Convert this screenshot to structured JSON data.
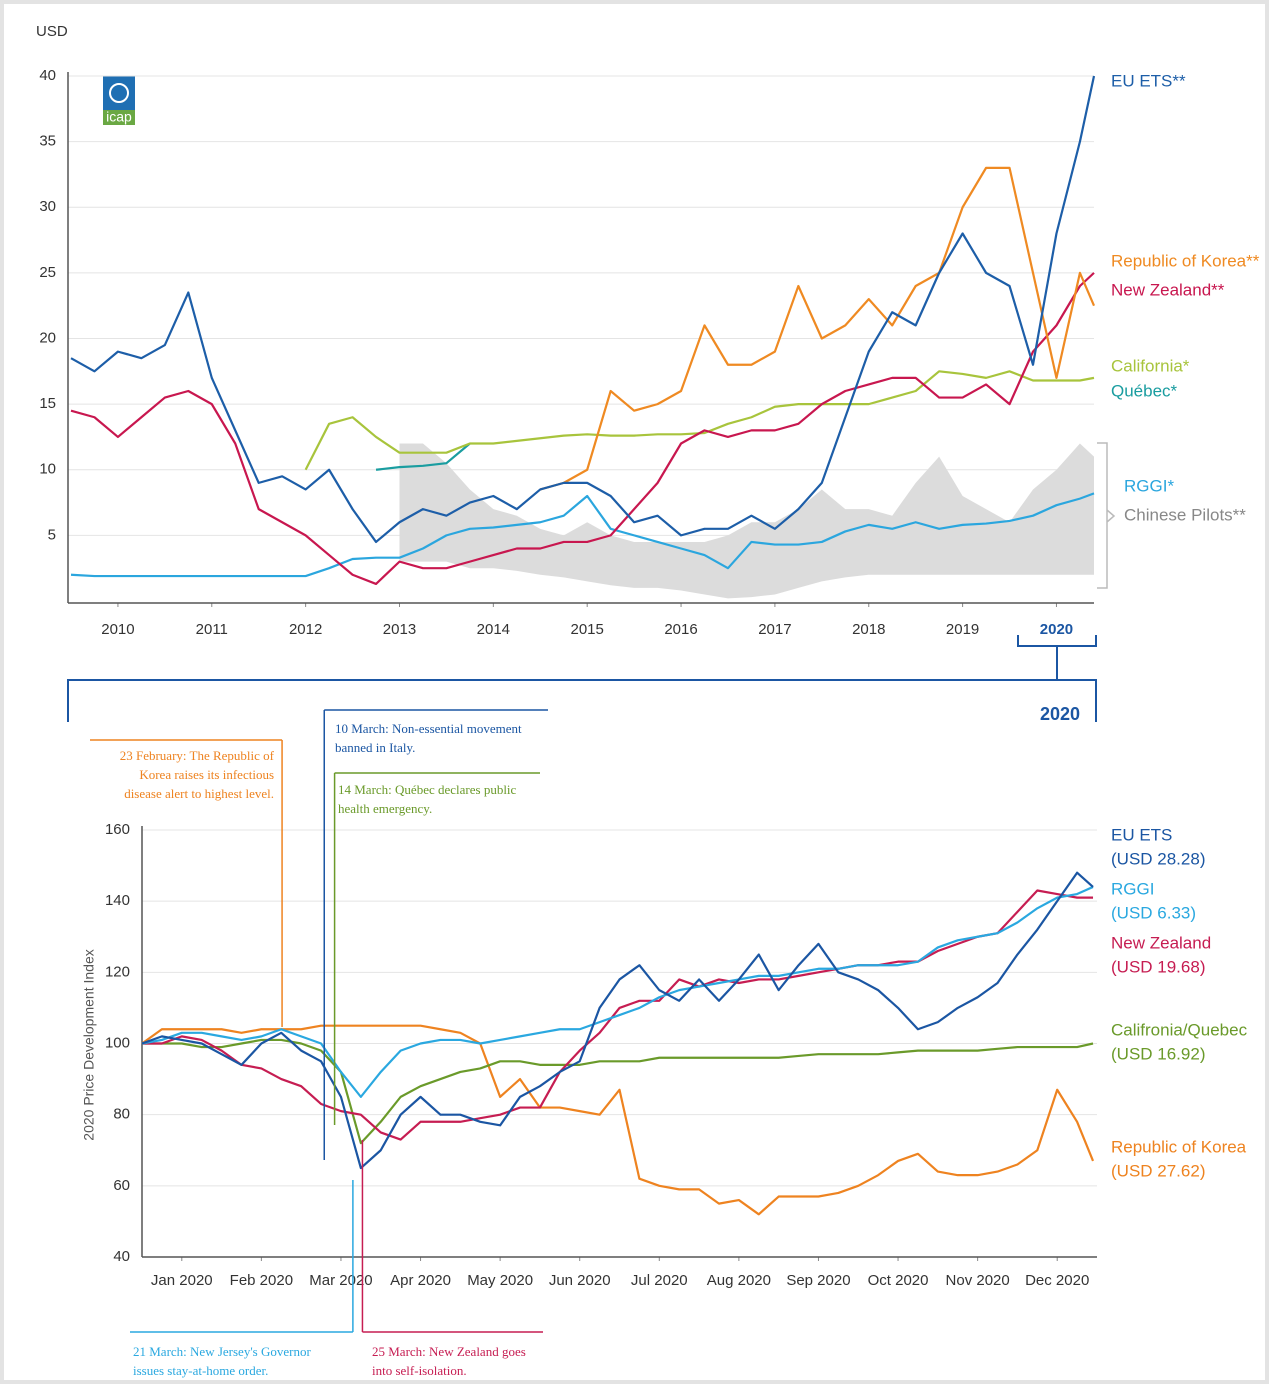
{
  "chart_data": [
    {
      "type": "line",
      "ylabel": "USD",
      "logo": "icap",
      "x": [
        2010,
        2010.25,
        2010.5,
        2010.75,
        2011,
        2011.25,
        2011.5,
        2011.75,
        2012,
        2012.25,
        2012.5,
        2012.75,
        2013,
        2013.25,
        2013.5,
        2013.75,
        2014,
        2014.25,
        2014.5,
        2014.75,
        2015,
        2015.25,
        2015.5,
        2015.75,
        2016,
        2016.25,
        2016.5,
        2016.75,
        2017,
        2017.25,
        2017.5,
        2017.75,
        2018,
        2018.25,
        2018.5,
        2018.75,
        2019,
        2019.25,
        2019.5,
        2019.75,
        2020,
        2020.25,
        2020.5,
        2020.75,
        2020.9
      ],
      "xlim": [
        2010,
        2020.9
      ],
      "xticks": [
        {
          "value": 2010.5,
          "label": "2010"
        },
        {
          "value": 2011.5,
          "label": "2011"
        },
        {
          "value": 2012.5,
          "label": "2012"
        },
        {
          "value": 2013.5,
          "label": "2013"
        },
        {
          "value": 2014.5,
          "label": "2014"
        },
        {
          "value": 2015.5,
          "label": "2015"
        },
        {
          "value": 2016.5,
          "label": "2016"
        },
        {
          "value": 2017.5,
          "label": "2017"
        },
        {
          "value": 2018.5,
          "label": "2018"
        },
        {
          "value": 2019.5,
          "label": "2019"
        },
        {
          "value": 2020.5,
          "label": "2020",
          "highlight": true
        }
      ],
      "ylim": [
        0,
        40
      ],
      "yticks": [
        5,
        10,
        15,
        20,
        25,
        30,
        35,
        40
      ],
      "grid": true,
      "series": [
        {
          "name": "EU ETS**",
          "color": "#1d5ea8",
          "values": [
            18.5,
            17.5,
            19,
            18.5,
            19.5,
            23.5,
            17,
            13,
            9,
            9.5,
            8.5,
            10,
            7,
            4.5,
            6,
            7,
            6.5,
            7.5,
            8,
            7,
            8.5,
            9,
            9,
            8,
            6,
            6.5,
            5,
            5.5,
            5.5,
            6.5,
            5.5,
            7,
            9,
            14,
            19,
            22,
            21,
            25,
            28,
            25,
            24,
            18,
            28,
            35,
            40
          ]
        },
        {
          "name": "Republic of Korea**",
          "color": "#ef8a22",
          "values": [
            null,
            null,
            null,
            null,
            null,
            null,
            null,
            null,
            null,
            null,
            null,
            null,
            null,
            null,
            null,
            null,
            null,
            null,
            null,
            null,
            8.5,
            9,
            10,
            16,
            14.5,
            15,
            16,
            21,
            18,
            18,
            19,
            24,
            20,
            21,
            23,
            21,
            24,
            25,
            30,
            33,
            33,
            25,
            17,
            25,
            22.5
          ]
        },
        {
          "name": "New Zealand**",
          "color": "#c8174f",
          "values": [
            14.5,
            14,
            12.5,
            14,
            15.5,
            16,
            15,
            12,
            7,
            6,
            5,
            3.5,
            2,
            1.3,
            3,
            2.5,
            2.5,
            3,
            3.5,
            4,
            4,
            4.5,
            4.5,
            5,
            7,
            9,
            12,
            13,
            12.5,
            13,
            13,
            13.5,
            15,
            16,
            16.5,
            17,
            17,
            15.5,
            15.5,
            16.5,
            15,
            19,
            21,
            24,
            25
          ]
        },
        {
          "name": "California*",
          "color": "#a8c43c",
          "values": [
            null,
            null,
            null,
            null,
            null,
            null,
            null,
            null,
            null,
            null,
            10,
            13.5,
            14,
            12.5,
            11.3,
            11.3,
            11.3,
            12,
            12,
            12.2,
            12.4,
            12.6,
            12.7,
            12.6,
            12.6,
            12.7,
            12.7,
            12.8,
            13.5,
            14,
            14.8,
            15,
            15,
            15,
            15,
            15.5,
            16,
            17.5,
            17.3,
            17,
            17.5,
            16.8,
            16.8,
            16.8,
            17
          ]
        },
        {
          "name": "Québec*",
          "color": "#1a9da0",
          "values": [
            null,
            null,
            null,
            null,
            null,
            null,
            null,
            null,
            null,
            null,
            null,
            null,
            null,
            10,
            10.2,
            10.3,
            10.5,
            12,
            null,
            null,
            null,
            null,
            null,
            null,
            null,
            null,
            null,
            null,
            null,
            null,
            null,
            null,
            null,
            null,
            null,
            null,
            null,
            null,
            null,
            null,
            null,
            null,
            null,
            null,
            null
          ]
        },
        {
          "name": "RGGI*",
          "color": "#2ba6de",
          "values": [
            2,
            1.9,
            1.9,
            1.9,
            1.9,
            1.9,
            1.9,
            1.9,
            1.9,
            1.9,
            1.9,
            2.5,
            3.2,
            3.3,
            3.3,
            4,
            5,
            5.5,
            5.6,
            5.8,
            6,
            6.5,
            8,
            5.5,
            5,
            4.5,
            4,
            3.5,
            2.5,
            4.5,
            4.3,
            4.3,
            4.5,
            5.3,
            5.8,
            5.5,
            6,
            5.5,
            5.8,
            5.9,
            6.1,
            6.5,
            7.3,
            7.8,
            8.2
          ]
        },
        {
          "name": "Chinese Pilots**",
          "color": "#dcdcdc",
          "type": "band",
          "high": [
            null,
            null,
            null,
            null,
            null,
            null,
            null,
            null,
            null,
            null,
            null,
            null,
            null,
            null,
            12,
            12,
            10.5,
            8.5,
            7,
            6.5,
            5.5,
            5,
            6,
            5,
            4.5,
            4.5,
            4.5,
            4.5,
            5,
            6,
            6,
            7,
            8.5,
            7,
            7,
            6.5,
            9,
            11,
            8,
            7,
            6,
            8.5,
            10,
            12,
            11
          ],
          "low": [
            null,
            null,
            null,
            null,
            null,
            null,
            null,
            null,
            null,
            null,
            null,
            null,
            null,
            null,
            3,
            3,
            3,
            2.5,
            2.5,
            2.3,
            2,
            1.8,
            1.5,
            1.2,
            1,
            1,
            0.8,
            0.5,
            0.2,
            0.3,
            0.5,
            1,
            1.5,
            1.8,
            2,
            2,
            2,
            2,
            2,
            2,
            2,
            2,
            2,
            2,
            2
          ]
        }
      ]
    },
    {
      "type": "line",
      "ylabel": "2020 Price Development Index",
      "zoom_label": "2020",
      "x": [
        0,
        0.25,
        0.5,
        0.75,
        1,
        1.25,
        1.5,
        1.75,
        2,
        2.25,
        2.5,
        2.75,
        3,
        3.25,
        3.5,
        3.75,
        4,
        4.25,
        4.5,
        4.75,
        5,
        5.25,
        5.5,
        5.75,
        6,
        6.25,
        6.5,
        6.75,
        7,
        7.25,
        7.5,
        7.75,
        8,
        8.25,
        8.5,
        8.75,
        9,
        9.25,
        9.5,
        9.75,
        10,
        10.25,
        10.5,
        10.75,
        11,
        11.25,
        11.5,
        11.75,
        11.95
      ],
      "xlim": [
        0,
        12
      ],
      "xticks": [
        {
          "value": 0.5,
          "label": "Jan 2020"
        },
        {
          "value": 1.5,
          "label": "Feb 2020"
        },
        {
          "value": 2.5,
          "label": "Mar 2020"
        },
        {
          "value": 3.5,
          "label": "Apr 2020"
        },
        {
          "value": 4.5,
          "label": "May 2020"
        },
        {
          "value": 5.5,
          "label": "Jun 2020"
        },
        {
          "value": 6.5,
          "label": "Jul 2020"
        },
        {
          "value": 7.5,
          "label": "Aug 2020"
        },
        {
          "value": 8.5,
          "label": "Sep 2020"
        },
        {
          "value": 9.5,
          "label": "Oct 2020"
        },
        {
          "value": 10.5,
          "label": "Nov 2020"
        },
        {
          "value": 11.5,
          "label": "Dec 2020"
        }
      ],
      "ylim": [
        40,
        160
      ],
      "yticks": [
        40,
        60,
        80,
        100,
        120,
        140,
        160
      ],
      "grid": true,
      "series": [
        {
          "name": "EU ETS",
          "note": "(USD 28.28)",
          "color": "#1b56a3",
          "values": [
            100,
            102,
            101,
            100,
            97,
            94,
            100,
            103,
            98,
            95,
            85,
            65,
            70,
            80,
            85,
            80,
            80,
            78,
            77,
            85,
            88,
            92,
            95,
            110,
            118,
            122,
            115,
            112,
            118,
            112,
            118,
            125,
            115,
            122,
            128,
            120,
            118,
            115,
            110,
            104,
            106,
            110,
            113,
            117,
            125,
            132,
            140,
            148,
            144
          ]
        },
        {
          "name": "RGGI",
          "note": "(USD 6.33)",
          "color": "#2aa8e0",
          "values": [
            100,
            101,
            103,
            103,
            102,
            101,
            102,
            104,
            102,
            100,
            92,
            85,
            92,
            98,
            100,
            101,
            101,
            100,
            101,
            102,
            103,
            104,
            104,
            106,
            108,
            110,
            113,
            115,
            116,
            117,
            118,
            119,
            119,
            120,
            121,
            121,
            122,
            122,
            122,
            123,
            127,
            129,
            130,
            131,
            134,
            138,
            141,
            142,
            144
          ]
        },
        {
          "name": "New Zealand",
          "note": "(USD 19.68)",
          "color": "#c61d52",
          "values": [
            100,
            100,
            102,
            101,
            98,
            94,
            93,
            90,
            88,
            83,
            81,
            80,
            75,
            73,
            78,
            78,
            78,
            79,
            80,
            82,
            82,
            92,
            98,
            103,
            110,
            112,
            112,
            118,
            116,
            118,
            117,
            118,
            118,
            119,
            120,
            121,
            122,
            122,
            123,
            123,
            126,
            128,
            130,
            131,
            137,
            143,
            142,
            141,
            141
          ]
        },
        {
          "name": "Califronia/Quebec",
          "note": "(USD 16.92)",
          "color": "#6a9a2a",
          "values": [
            100,
            100,
            100,
            99,
            99,
            100,
            101,
            101,
            100,
            98,
            92,
            72,
            78,
            85,
            88,
            90,
            92,
            93,
            95,
            95,
            94,
            94,
            94,
            95,
            95,
            95,
            96,
            96,
            96,
            96,
            96,
            96,
            96,
            96.5,
            97,
            97,
            97,
            97,
            97.5,
            98,
            98,
            98,
            98,
            98.5,
            99,
            99,
            99,
            99,
            100
          ]
        },
        {
          "name": "Republic of Korea",
          "note": "(USD 27.62)",
          "color": "#ee8320",
          "values": [
            100,
            104,
            104,
            104,
            104,
            103,
            104,
            104,
            104,
            105,
            105,
            105,
            105,
            105,
            105,
            104,
            103,
            100,
            85,
            90,
            82,
            82,
            81,
            80,
            87,
            62,
            60,
            59,
            59,
            55,
            56,
            52,
            57,
            57,
            57,
            58,
            60,
            63,
            67,
            69,
            64,
            63,
            63,
            64,
            66,
            70,
            87,
            78,
            67
          ]
        }
      ],
      "annotations": [
        {
          "x": 1.76,
          "color": "#ee8320",
          "lines": [
            "23 February: The Republic of",
            "Korea raises its infectious",
            "disease alert to highest level."
          ]
        },
        {
          "x": 2.29,
          "color": "#1b56a3",
          "lines": [
            "10 March: Non-essential movement",
            "banned in Italy."
          ]
        },
        {
          "x": 2.42,
          "color": "#6a9a2a",
          "lines": [
            "14 March: Québec declares public",
            "health emergency."
          ]
        },
        {
          "x": 2.65,
          "color": "#2aa8e0",
          "lines": [
            "21 March: New Jersey's Governor",
            "issues stay-at-home order."
          ]
        },
        {
          "x": 2.77,
          "color": "#c61d52",
          "lines": [
            "25 March: New Zealand goes",
            "into self-isolation."
          ]
        }
      ]
    }
  ]
}
